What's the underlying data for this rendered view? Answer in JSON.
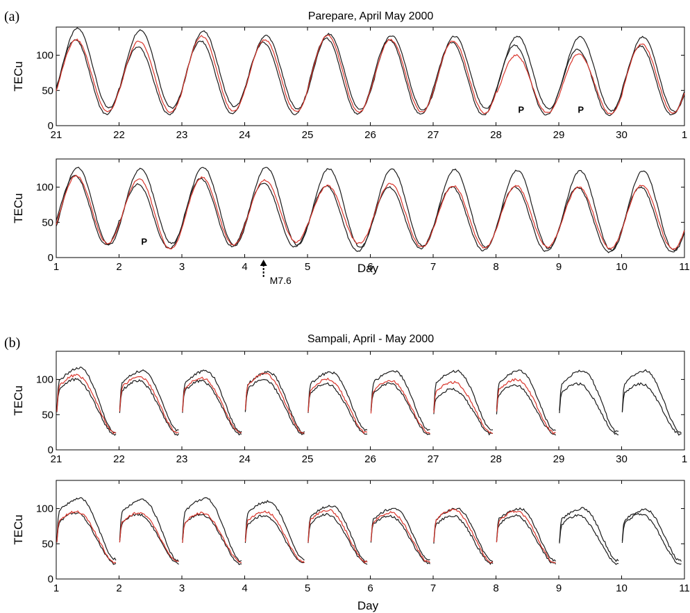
{
  "figure": {
    "label_a": "(a)",
    "label_b": "(b)",
    "title_a": "Parepare, April May 2000",
    "title_b": "Sampali, April - May 2000",
    "ylabel": "TECu",
    "xlabel": "Day",
    "earthquake_label": "M7.6",
    "p_label": "P"
  },
  "chart_data": [
    {
      "type": "line",
      "panel": "a-top",
      "x_ticks": [
        "21",
        "22",
        "23",
        "24",
        "25",
        "26",
        "27",
        "28",
        "29",
        "30",
        "1"
      ],
      "y_ticks": [
        "0",
        "50",
        "100"
      ],
      "ylim": [
        0,
        140
      ],
      "ylabel": "TECu",
      "title": "Parepare, April May 2000",
      "series_colors": {
        "upper": "#1a1a1a",
        "lower": "#1a1a1a",
        "observed": "#d9352b"
      },
      "series": [
        {
          "role": "upper",
          "days": [
            {
              "max": 138,
              "min": 25
            },
            {
              "max": 136,
              "min": 25
            },
            {
              "max": 134,
              "min": 27
            },
            {
              "max": 128,
              "min": 24
            },
            {
              "max": 130,
              "min": 23
            },
            {
              "max": 128,
              "min": 22
            },
            {
              "max": 127,
              "min": 24
            },
            {
              "max": 127,
              "min": 24
            },
            {
              "max": 126,
              "min": 21
            },
            {
              "max": 126,
              "min": 20
            }
          ]
        },
        {
          "role": "lower",
          "days": [
            {
              "max": 122,
              "min": 16
            },
            {
              "max": 112,
              "min": 16
            },
            {
              "max": 120,
              "min": 17
            },
            {
              "max": 118,
              "min": 16
            },
            {
              "max": 124,
              "min": 16
            },
            {
              "max": 122,
              "min": 16
            },
            {
              "max": 118,
              "min": 15
            },
            {
              "max": 114,
              "min": 15
            },
            {
              "max": 108,
              "min": 15
            },
            {
              "max": 113,
              "min": 15
            }
          ]
        },
        {
          "role": "observed",
          "days": [
            {
              "max": 122,
              "min": 20
            },
            {
              "max": 120,
              "min": 19
            },
            {
              "max": 127,
              "min": 20
            },
            {
              "max": 122,
              "min": 20
            },
            {
              "max": 128,
              "min": 19
            },
            {
              "max": 122,
              "min": 19
            },
            {
              "max": 120,
              "min": 18
            },
            {
              "max": 100,
              "min": 18
            },
            {
              "max": 102,
              "min": 17
            },
            {
              "max": 116,
              "min": 18
            }
          ]
        }
      ],
      "annotations": [
        {
          "text": "P",
          "day": 28.4,
          "value": 18
        },
        {
          "text": "P",
          "day": 29.35,
          "value": 18
        }
      ]
    },
    {
      "type": "line",
      "panel": "a-bottom",
      "x_ticks": [
        "1",
        "2",
        "3",
        "4",
        "5",
        "6",
        "7",
        "8",
        "9",
        "10",
        "11"
      ],
      "y_ticks": [
        "0",
        "50",
        "100"
      ],
      "ylim": [
        0,
        140
      ],
      "ylabel": "TECu",
      "xlabel": "Day",
      "series_colors": {
        "upper": "#1a1a1a",
        "lower": "#1a1a1a",
        "observed": "#d9352b"
      },
      "series": [
        {
          "role": "upper",
          "days": [
            {
              "max": 128,
              "min": 18
            },
            {
              "max": 126,
              "min": 20
            },
            {
              "max": 128,
              "min": 17
            },
            {
              "max": 128,
              "min": 18
            },
            {
              "max": 126,
              "min": 15
            },
            {
              "max": 126,
              "min": 16
            },
            {
              "max": 125,
              "min": 15
            },
            {
              "max": 124,
              "min": 13
            },
            {
              "max": 123,
              "min": 10
            },
            {
              "max": 123,
              "min": 10
            }
          ]
        },
        {
          "role": "lower",
          "days": [
            {
              "max": 116,
              "min": 18
            },
            {
              "max": 104,
              "min": 13
            },
            {
              "max": 112,
              "min": 16
            },
            {
              "max": 106,
              "min": 15
            },
            {
              "max": 102,
              "min": 9
            },
            {
              "max": 100,
              "min": 13
            },
            {
              "max": 100,
              "min": 10
            },
            {
              "max": 100,
              "min": 9
            },
            {
              "max": 100,
              "min": 8
            },
            {
              "max": 100,
              "min": 8
            }
          ]
        },
        {
          "role": "observed",
          "days": [
            {
              "max": 116,
              "min": 20
            },
            {
              "max": 112,
              "min": 12
            },
            {
              "max": 114,
              "min": 18
            },
            {
              "max": 110,
              "min": 22
            },
            {
              "max": 102,
              "min": 20
            },
            {
              "max": 105,
              "min": 15
            },
            {
              "max": 102,
              "min": 14
            },
            {
              "max": 102,
              "min": 15
            },
            {
              "max": 100,
              "min": 13
            },
            {
              "max": 103,
              "min": 12
            }
          ]
        }
      ],
      "annotations": [
        {
          "text": "P",
          "day": 2.4,
          "value": 18
        }
      ],
      "event": {
        "label": "M7.6",
        "day": 4.3
      }
    },
    {
      "type": "line",
      "panel": "b-top",
      "x_ticks": [
        "21",
        "22",
        "23",
        "24",
        "25",
        "26",
        "27",
        "28",
        "29",
        "30",
        "1"
      ],
      "y_ticks": [
        "0",
        "50",
        "100"
      ],
      "ylim": [
        0,
        140
      ],
      "ylabel": "TECu",
      "title": "Sampali, April - May 2000",
      "series_colors": {
        "upper": "#1a1a1a",
        "lower": "#1a1a1a",
        "observed": "#d9352b"
      },
      "series": [
        {
          "role": "upper",
          "days": [
            {
              "max": 116,
              "min": 24
            },
            {
              "max": 112,
              "min": 28
            },
            {
              "max": 112,
              "min": 26
            },
            {
              "max": 110,
              "min": 25
            },
            {
              "max": 110,
              "min": 28
            },
            {
              "max": 112,
              "min": 28
            },
            {
              "max": 112,
              "min": 28
            },
            {
              "max": 112,
              "min": 28
            },
            {
              "max": 112,
              "min": 25
            },
            {
              "max": 112,
              "min": 25
            }
          ]
        },
        {
          "role": "lower",
          "days": [
            {
              "max": 100,
              "min": 22
            },
            {
              "max": 98,
              "min": 22
            },
            {
              "max": 98,
              "min": 22
            },
            {
              "max": 100,
              "min": 22
            },
            {
              "max": 94,
              "min": 22
            },
            {
              "max": 94,
              "min": 22
            },
            {
              "max": 86,
              "min": 22
            },
            {
              "max": 92,
              "min": 22
            },
            {
              "max": 94,
              "min": 22
            },
            {
              "max": 94,
              "min": 22
            }
          ]
        },
        {
          "role": "observed",
          "days": [
            {
              "max": 106,
              "min": 24
            },
            {
              "max": 104,
              "min": 24
            },
            {
              "max": 102,
              "min": 24
            },
            {
              "max": 108,
              "min": 24
            },
            {
              "max": 100,
              "min": 24
            },
            {
              "max": 98,
              "min": 24
            },
            {
              "max": 96,
              "min": 24
            },
            {
              "max": 100,
              "min": 24
            }
          ]
        }
      ]
    },
    {
      "type": "line",
      "panel": "b-bottom",
      "x_ticks": [
        "1",
        "2",
        "3",
        "4",
        "5",
        "6",
        "7",
        "8",
        "9",
        "10",
        "11"
      ],
      "y_ticks": [
        "0",
        "50",
        "100"
      ],
      "ylim": [
        0,
        140
      ],
      "ylabel": "TECu",
      "xlabel": "Day",
      "series_colors": {
        "upper": "#1a1a1a",
        "lower": "#1a1a1a",
        "observed": "#d9352b"
      },
      "series": [
        {
          "role": "upper",
          "days": [
            {
              "max": 114,
              "min": 28
            },
            {
              "max": 112,
              "min": 26
            },
            {
              "max": 114,
              "min": 26
            },
            {
              "max": 110,
              "min": 28
            },
            {
              "max": 104,
              "min": 26
            },
            {
              "max": 100,
              "min": 26
            },
            {
              "max": 100,
              "min": 26
            },
            {
              "max": 100,
              "min": 26
            },
            {
              "max": 100,
              "min": 26
            },
            {
              "max": 98,
              "min": 26
            }
          ]
        },
        {
          "role": "lower",
          "days": [
            {
              "max": 94,
              "min": 22
            },
            {
              "max": 92,
              "min": 22
            },
            {
              "max": 92,
              "min": 22
            },
            {
              "max": 90,
              "min": 22
            },
            {
              "max": 92,
              "min": 22
            },
            {
              "max": 90,
              "min": 22
            },
            {
              "max": 90,
              "min": 22
            },
            {
              "max": 90,
              "min": 22
            },
            {
              "max": 90,
              "min": 22
            },
            {
              "max": 92,
              "min": 22
            }
          ]
        },
        {
          "role": "observed",
          "days": [
            {
              "max": 96,
              "min": 24
            },
            {
              "max": 94,
              "min": 24
            },
            {
              "max": 94,
              "min": 24
            },
            {
              "max": 96,
              "min": 24
            },
            {
              "max": 98,
              "min": 24
            },
            {
              "max": 94,
              "min": 24
            },
            {
              "max": 98,
              "min": 24
            },
            {
              "max": 96,
              "min": 24
            }
          ]
        }
      ]
    }
  ]
}
